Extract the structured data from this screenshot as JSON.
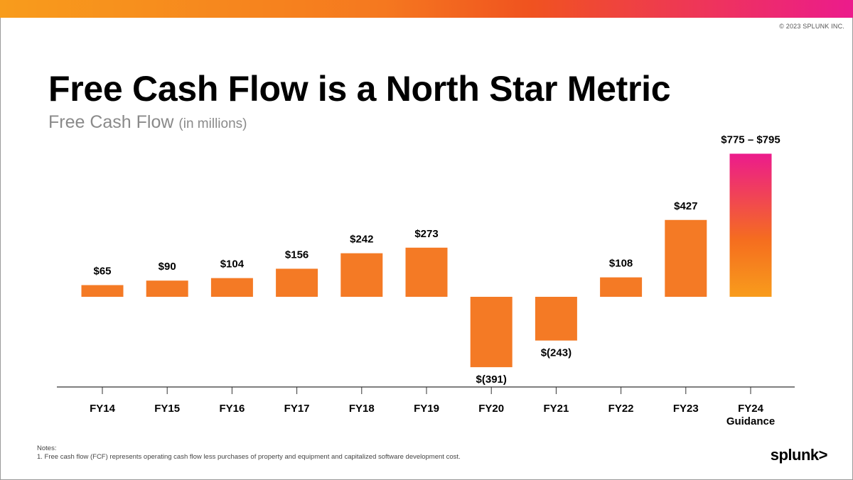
{
  "header": {
    "copyright": "© 2023 SPLUNK INC.",
    "title": "Free Cash Flow is a North Star Metric",
    "subtitle": "Free Cash Flow",
    "subtitle_unit": "(in millions)"
  },
  "chart_data": {
    "type": "bar",
    "categories": [
      "FY14",
      "FY15",
      "FY16",
      "FY17",
      "FY18",
      "FY19",
      "FY20",
      "FY21",
      "FY22",
      "FY23",
      "FY24"
    ],
    "category_sublabels": [
      "",
      "",
      "",
      "",
      "",
      "",
      "",
      "",
      "",
      "",
      "Guidance"
    ],
    "values": [
      65,
      90,
      104,
      156,
      242,
      273,
      -391,
      -243,
      108,
      427,
      795
    ],
    "range_low": [
      null,
      null,
      null,
      null,
      null,
      null,
      null,
      null,
      null,
      null,
      775
    ],
    "data_labels": [
      "$65",
      "$90",
      "$104",
      "$156",
      "$242",
      "$273",
      "$(391)",
      "$(243)",
      "$108",
      "$427",
      "$775 – $795"
    ],
    "colors": {
      "bar": "#f47a25",
      "guidance_top": "#ec1b8c",
      "guidance_mid": "#f56d1f",
      "guidance_bottom": "#f89c1c",
      "axis": "#333333"
    },
    "ylim": [
      -391,
      795
    ]
  },
  "footer": {
    "notes_title": "Notes:",
    "notes_line": "1. Free cash flow (FCF) represents operating cash flow less purchases of property and equipment and capitalized software development cost.",
    "logo_text": "splunk>"
  }
}
